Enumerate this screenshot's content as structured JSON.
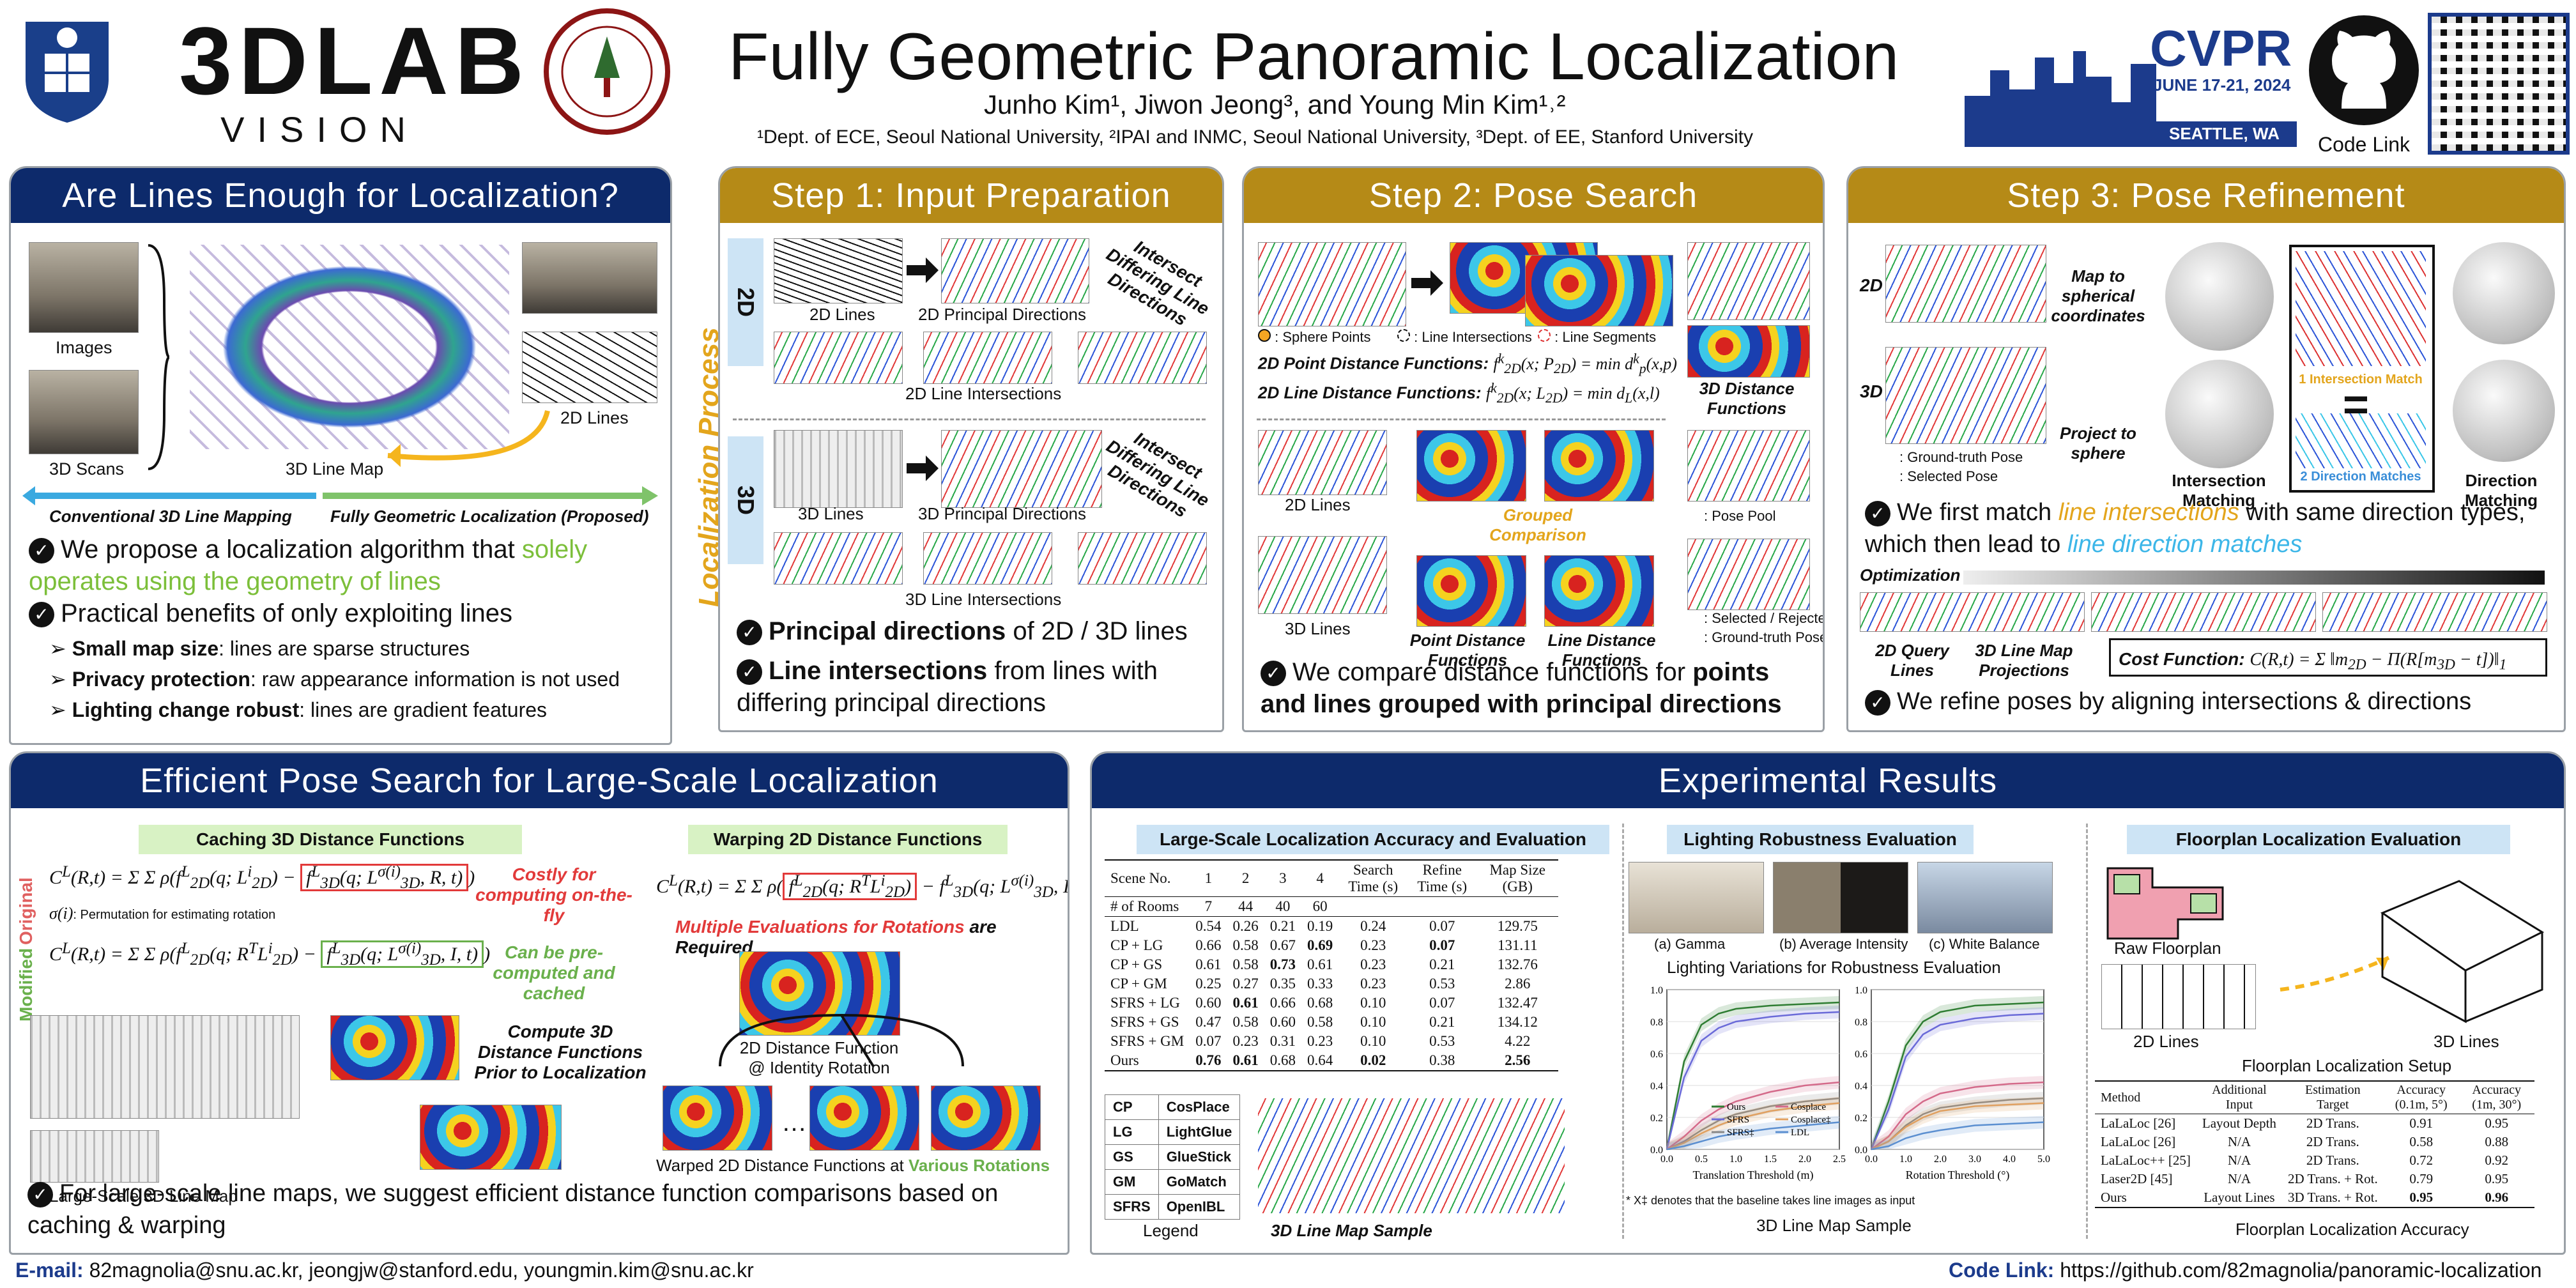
{
  "header": {
    "title": "Fully Geometric Panoramic Localization",
    "authors": "Junho Kim¹, Jiwon Jeong³, and Young Min Kim¹˒²",
    "affiliations": "¹Dept. of ECE, Seoul National University, ²IPAI and INMC, Seoul National University, ³Dept. of EE, Stanford University",
    "lab_logo_main": "3DLAB",
    "lab_logo_sub": "VISION",
    "conf_name": "CVPR",
    "conf_dates": "JUNE 17-21, 2024",
    "conf_city": "SEATTLE, WA",
    "code_link_label": "Code Link"
  },
  "panel1": {
    "title": "Are Lines Enough for Localization?",
    "labels": [
      "Images",
      "3D Scans",
      "3D Line Map",
      "2D Lines"
    ],
    "arrow_left": "Conventional 3D Line Mapping",
    "arrow_right": "Fully Geometric Localization (Proposed)",
    "bullet1_a": "We propose a localization algorithm that ",
    "bullet1_b": "solely operates using the geometry of lines",
    "bullet2": "Practical benefits of only exploiting lines",
    "sub1_b": "Small map size",
    "sub1": ": lines are sparse structures",
    "sub2_b": "Privacy protection",
    "sub2": ": raw appearance information is not used",
    "sub3_b": "Lighting change robust",
    "sub3": ": lines are gradient features"
  },
  "step1": {
    "title": "Step 1: Input Preparation",
    "side": "Localization Process",
    "tag2d": "2D",
    "tag3d": "3D",
    "l_2dlines": "2D Lines",
    "l_2dpd": "2D Principal Directions",
    "l_2dint": "2D Line Intersections",
    "l_3dlines": "3D Lines",
    "l_3dpd": "3D Principal Directions",
    "l_3dint": "3D Line Intersections",
    "curve_note": "Intersect Differing Line Directions",
    "b1_a": "Principal directions",
    "b1_b": " of 2D / 3D lines",
    "b2_a": "Line intersections",
    "b2_b": " from lines with differing principal directions"
  },
  "step2": {
    "title": "Step 2: Pose Search",
    "leg_sphere": ": Sphere Points",
    "leg_int": ": Line Intersections",
    "leg_seg": ": Line Segments",
    "pt_fn_label": "2D Point Distance Functions:",
    "ln_fn_label": "2D Line Distance Functions:",
    "d3_label": "3D Distance Functions",
    "l_2dlines": "2D Lines",
    "l_3dlines": "3D Lines",
    "grouped": "Grouped Comparison",
    "pt_dist": "Point Distance Functions",
    "ln_dist": "Line Distance Functions",
    "pose_pool": ": Pose Pool",
    "sel_rej": ": Selected / Rejected",
    "gt_pose": ": Ground-truth Pose",
    "bullet_a": "We compare distance functions for ",
    "bullet_b": "points and lines grouped with principal directions"
  },
  "step3": {
    "title": "Step 3: Pose Refinement",
    "tag2d": "2D",
    "tag3d": "3D",
    "map_sph": "Map to spherical coordinates",
    "proj_sph": "Project to sphere",
    "gt_pose": ": Ground-truth Pose",
    "sel_pose": ": Selected Pose",
    "int_match": "1 Intersection Match",
    "dir_match": "2 Direction Matches",
    "l_int_matching": "Intersection Matching",
    "l_dir_matching": "Direction Matching",
    "bullet_a": "We first match ",
    "bullet_b": "line intersections",
    "bullet_c": " with same direction types, which then lead to ",
    "bullet_d": "line direction matches",
    "optimization": "Optimization",
    "l_query": "2D Query Lines",
    "l_proj": "3D Line Map Projections",
    "cost_label": "Cost Function:",
    "bullet2": "We refine poses by aligning intersections & directions"
  },
  "panel5": {
    "title": "Efficient Pose Search for Large-Scale Localization",
    "sub_cache": "Caching 3D Distance Functions",
    "sub_warp": "Warping 2D Distance Functions",
    "side_orig": "Original",
    "side_mod": "Modified",
    "sigma_note": ": Permutation for estimating rotation",
    "costly": "Costly for computing on-the-fly",
    "precomp": "Can be pre-computed and cached",
    "compute_note": "Compute 3D Distance Functions Prior to Localization",
    "large_map": "Large-Scale 3D Line Map",
    "multi_a": "Multiple Evaluations for Rotations",
    "multi_b": " are Required",
    "dist_id": "2D Distance Function @ Identity Rotation",
    "ellipsis": "…",
    "warped_a": "Warped 2D Distance Functions at ",
    "warped_b": "Various Rotations",
    "bullet": "For large-scale line maps, we suggest efficient distance function comparisons based on caching & warping"
  },
  "exp": {
    "title": "Experimental Results",
    "sub_large": "Large-Scale Localization Accuracy and Evaluation",
    "sub_light": "Lighting Robustness Evaluation",
    "sub_floor": "Floorplan Localization Evaluation",
    "table_headers": [
      "Scene No.",
      "1",
      "2",
      "3",
      "4",
      "Search Time (s)",
      "Refine Time (s)",
      "Map Size (GB)"
    ],
    "rooms_row": [
      "# of Rooms",
      "7",
      "44",
      "40",
      "60",
      "",
      "",
      ""
    ],
    "table_rows": [
      [
        "LDL",
        "0.54",
        "0.26",
        "0.21",
        "0.19",
        "0.24",
        "0.07",
        "129.75"
      ],
      [
        "CP + LG",
        "0.66",
        "0.58",
        "0.67",
        "0.69",
        "0.23",
        "0.07",
        "131.11"
      ],
      [
        "CP + GS",
        "0.61",
        "0.58",
        "0.73",
        "0.61",
        "0.23",
        "0.21",
        "132.76"
      ],
      [
        "CP + GM",
        "0.25",
        "0.27",
        "0.35",
        "0.33",
        "0.23",
        "0.53",
        "2.86"
      ],
      [
        "SFRS + LG",
        "0.60",
        "0.61",
        "0.66",
        "0.68",
        "0.10",
        "0.07",
        "132.47"
      ],
      [
        "SFRS + GS",
        "0.47",
        "0.58",
        "0.60",
        "0.58",
        "0.10",
        "0.21",
        "134.12"
      ],
      [
        "SFRS + GM",
        "0.07",
        "0.23",
        "0.31",
        "0.23",
        "0.10",
        "0.53",
        "4.22"
      ],
      [
        "Ours",
        "0.76",
        "0.61",
        "0.68",
        "0.64",
        "0.02",
        "0.38",
        "2.56"
      ]
    ],
    "legend_rows": [
      [
        "CP",
        "CosPlace"
      ],
      [
        "LG",
        "LightGlue"
      ],
      [
        "GS",
        "GlueStick"
      ],
      [
        "GM",
        "GoMatch"
      ],
      [
        "SFRS",
        "OpenIBL"
      ]
    ],
    "legend_label": "Legend",
    "map_sample": "3D Line Map Sample",
    "light_caps": [
      "(a) Gamma",
      "(b) Average Intensity",
      "(c) White Balance"
    ],
    "light_title": "Lighting Variations for Robustness Evaluation",
    "xlabel_trans": "Translation Threshold (m)",
    "xlabel_rot": "Rotation Threshold (°)",
    "footnote": "* X‡ denotes that the baseline takes line images as input",
    "light_bottom": "3D Line Map Sample",
    "raw_floor": "Raw Floorplan",
    "fl_2d": "2D Lines",
    "fl_3d": "3D Lines",
    "fl_setup": "Floorplan Localization Setup",
    "fl_headers": [
      "Method",
      "Additional Input",
      "Estimation Target",
      "Accuracy (0.1m, 5°)",
      "Accuracy (1m, 30°)"
    ],
    "fl_rows": [
      [
        "LaLaLoc [26]",
        "Layout Depth",
        "2D Trans.",
        "0.91",
        "0.95"
      ],
      [
        "LaLaLoc [26]",
        "N/A",
        "2D Trans.",
        "0.58",
        "0.88"
      ],
      [
        "LaLaLoc++ [25]",
        "N/A",
        "2D Trans.",
        "0.72",
        "0.92"
      ],
      [
        "Laser2D [45]",
        "N/A",
        "2D Trans. + Rot.",
        "0.79",
        "0.95"
      ],
      [
        "Ours",
        "Layout Lines",
        "3D Trans. + Rot.",
        "0.95",
        "0.96"
      ]
    ],
    "fl_caption": "Floorplan Localization Accuracy"
  },
  "footer": {
    "email_label": "E-mail:",
    "email": " 82magnolia@snu.ac.kr, jeongjw@stanford.edu, youngmin.kim@snu.ac.kr",
    "code_label": "Code Link:",
    "code": " https://github.com/82magnolia/panoramic-localization"
  },
  "chart_data": [
    {
      "type": "line",
      "xlabel": "Translation Threshold (m)",
      "xlim": [
        0,
        2.5
      ],
      "ylim": [
        0,
        1.0
      ],
      "x": [
        0,
        0.25,
        0.5,
        0.75,
        1.0,
        1.5,
        2.0,
        2.5
      ],
      "series": [
        {
          "name": "Ours",
          "color": "#2e7d32",
          "values": [
            0,
            0.55,
            0.78,
            0.85,
            0.88,
            0.9,
            0.91,
            0.92
          ]
        },
        {
          "name": "SFRS",
          "color": "#6a6ad8",
          "values": [
            0,
            0.45,
            0.68,
            0.76,
            0.8,
            0.83,
            0.85,
            0.86
          ]
        },
        {
          "name": "SFRS‡",
          "color": "#888888",
          "values": [
            0,
            0.05,
            0.12,
            0.18,
            0.22,
            0.27,
            0.3,
            0.32
          ]
        },
        {
          "name": "Cosplace",
          "color": "#d46a8a",
          "values": [
            0,
            0.08,
            0.18,
            0.25,
            0.3,
            0.36,
            0.4,
            0.42
          ]
        },
        {
          "name": "Cosplace‡",
          "color": "#e0a060",
          "values": [
            0,
            0.04,
            0.1,
            0.15,
            0.19,
            0.24,
            0.27,
            0.29
          ]
        },
        {
          "name": "LDL",
          "color": "#5b8fd0",
          "values": [
            0,
            0.02,
            0.05,
            0.08,
            0.1,
            0.13,
            0.15,
            0.17
          ]
        }
      ]
    },
    {
      "type": "line",
      "xlabel": "Rotation Threshold (°)",
      "xlim": [
        0,
        5.0
      ],
      "ylim": [
        0,
        1.0
      ],
      "x": [
        0,
        0.5,
        1.0,
        1.5,
        2.0,
        3.0,
        4.0,
        5.0
      ],
      "series": [
        {
          "name": "Ours",
          "color": "#2e7d32",
          "values": [
            0,
            0.3,
            0.65,
            0.8,
            0.86,
            0.9,
            0.91,
            0.92
          ]
        },
        {
          "name": "SFRS",
          "color": "#6a6ad8",
          "values": [
            0,
            0.25,
            0.58,
            0.72,
            0.78,
            0.82,
            0.84,
            0.85
          ]
        },
        {
          "name": "SFRS‡",
          "color": "#888888",
          "values": [
            0,
            0.05,
            0.15,
            0.22,
            0.26,
            0.29,
            0.31,
            0.32
          ]
        },
        {
          "name": "Cosplace",
          "color": "#d46a8a",
          "values": [
            0,
            0.08,
            0.22,
            0.3,
            0.35,
            0.39,
            0.41,
            0.42
          ]
        },
        {
          "name": "Cosplace‡",
          "color": "#e0a060",
          "values": [
            0,
            0.05,
            0.14,
            0.2,
            0.24,
            0.27,
            0.28,
            0.29
          ]
        },
        {
          "name": "LDL",
          "color": "#5b8fd0",
          "values": [
            0,
            0.02,
            0.07,
            0.1,
            0.12,
            0.15,
            0.16,
            0.17
          ]
        }
      ]
    }
  ]
}
